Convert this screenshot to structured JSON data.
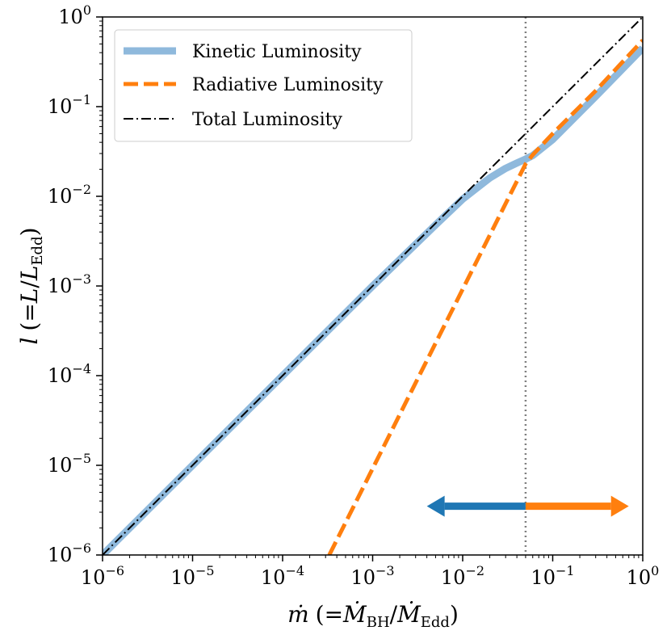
{
  "chart_data": {
    "type": "line",
    "xscale": "log",
    "yscale": "log",
    "xlim": [
      1e-06,
      1
    ],
    "ylim": [
      1e-06,
      1
    ],
    "xlabel": {
      "main": "ṁ",
      "open": "(=",
      "num": "Ṁ",
      "num_sub": "BH",
      "slash": "/",
      "den": "Ṁ",
      "den_sub": "Edd",
      "close": ")"
    },
    "ylabel": {
      "main": "l",
      "open": "(=",
      "num": "L",
      "slash": "/",
      "den": "L",
      "den_sub": "Edd",
      "close": ")"
    },
    "x_ticks": [
      {
        "base": "10",
        "exp": "−6",
        "value": 1e-06
      },
      {
        "base": "10",
        "exp": "−5",
        "value": 1e-05
      },
      {
        "base": "10",
        "exp": "−4",
        "value": 0.0001
      },
      {
        "base": "10",
        "exp": "−3",
        "value": 0.001
      },
      {
        "base": "10",
        "exp": "−2",
        "value": 0.01
      },
      {
        "base": "10",
        "exp": "−1",
        "value": 0.1
      },
      {
        "base": "10",
        "exp": "0",
        "value": 1
      }
    ],
    "y_ticks": [
      {
        "base": "10",
        "exp": "−6",
        "value": 1e-06
      },
      {
        "base": "10",
        "exp": "−5",
        "value": 1e-05
      },
      {
        "base": "10",
        "exp": "−4",
        "value": 0.0001
      },
      {
        "base": "10",
        "exp": "−3",
        "value": 0.001
      },
      {
        "base": "10",
        "exp": "−2",
        "value": 0.01
      },
      {
        "base": "10",
        "exp": "−1",
        "value": 0.1
      },
      {
        "base": "10",
        "exp": "0",
        "value": 1
      }
    ],
    "series": [
      {
        "name": "Kinetic Luminosity",
        "color": "#8fb9dc",
        "style": "solid-thick",
        "x": [
          1e-06,
          1e-05,
          0.0001,
          0.001,
          0.005,
          0.01,
          0.015,
          0.02,
          0.03,
          0.04,
          0.05,
          0.06,
          0.1,
          0.3,
          1
        ],
        "y": [
          1e-06,
          1e-05,
          0.0001,
          0.001,
          0.0048,
          0.0093,
          0.0128,
          0.016,
          0.0205,
          0.0235,
          0.026,
          0.0285,
          0.043,
          0.13,
          0.45
        ]
      },
      {
        "name": "Radiative Luminosity",
        "color": "#ff7f0e",
        "style": "dashed",
        "x": [
          0.00033,
          0.001,
          0.003,
          0.01,
          0.03,
          0.05,
          0.06,
          0.1,
          0.3,
          1
        ],
        "y": [
          1e-06,
          9.2e-06,
          8.3e-05,
          0.00092,
          0.0083,
          0.023,
          0.029,
          0.05,
          0.15,
          0.55
        ]
      },
      {
        "name": "Total Luminosity",
        "color": "#000000",
        "style": "dashdot",
        "x": [
          1e-06,
          1
        ],
        "y": [
          1e-06,
          1
        ]
      }
    ],
    "vline": {
      "x": 0.05,
      "color": "#808080",
      "style": "dotted"
    },
    "arrows": [
      {
        "name": "left-arrow",
        "from_x": 0.05,
        "to_x": 0.004,
        "y": 3.5e-06,
        "color": "#1f77b4"
      },
      {
        "name": "right-arrow",
        "from_x": 0.05,
        "to_x": 0.7,
        "y": 3.5e-06,
        "color": "#ff7f0e"
      }
    ],
    "legend": {
      "placement": "top-left",
      "entries": [
        "Kinetic Luminosity",
        "Radiative Luminosity",
        "Total Luminosity"
      ]
    },
    "grid": false
  }
}
